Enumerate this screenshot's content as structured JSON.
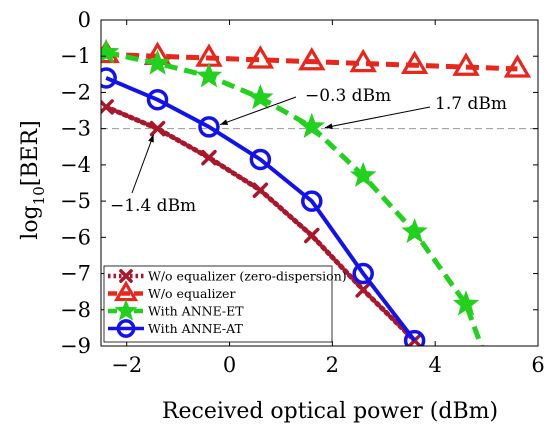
{
  "chart_data": {
    "type": "line",
    "xlabel": "Received optical power (dBm)",
    "ylabel_base": "log",
    "ylabel_sub": "10",
    "ylabel_arg": "[BER]",
    "xlim": [
      -2.5,
      6
    ],
    "ylim": [
      -9,
      0
    ],
    "xticks": [
      -2,
      0,
      2,
      4,
      6
    ],
    "yticks": [
      0,
      -1,
      -2,
      -3,
      -4,
      -5,
      -6,
      -7,
      -8,
      -9
    ],
    "grid": false,
    "legend_position": "bottom-left",
    "reference_line": {
      "y": -3,
      "style": "dashed",
      "color": "#9a9a9a"
    },
    "series": [
      {
        "name": "W/o equalizer (zero-dispersion)",
        "color": "#a8172b",
        "line_style": "dotted",
        "marker": "x",
        "x": [
          -2.4,
          -1.4,
          -0.4,
          0.6,
          1.6,
          2.6,
          3.6
        ],
        "y": [
          -2.4,
          -3.0,
          -3.8,
          -4.7,
          -5.95,
          -7.45,
          -8.85
        ]
      },
      {
        "name": "W/o equalizer",
        "color": "#e8261c",
        "line_style": "dashed",
        "marker": "triangle",
        "x": [
          -2.4,
          -1.4,
          -0.4,
          0.6,
          1.6,
          2.6,
          3.6,
          4.6,
          5.6
        ],
        "y": [
          -0.95,
          -1.0,
          -1.05,
          -1.1,
          -1.15,
          -1.2,
          -1.25,
          -1.3,
          -1.35
        ]
      },
      {
        "name": "With ANNE-ET",
        "color": "#22d11e",
        "line_style": "dashed",
        "marker": "star",
        "x": [
          -2.4,
          -1.4,
          -0.4,
          0.6,
          1.6,
          2.6,
          3.6,
          4.6
        ],
        "y": [
          -0.9,
          -1.2,
          -1.55,
          -2.15,
          -2.95,
          -4.3,
          -5.85,
          -7.85
        ]
      },
      {
        "name": "With ANNE-AT",
        "color": "#1212ee",
        "line_style": "solid",
        "marker": "circle",
        "x": [
          -2.4,
          -1.4,
          -0.4,
          0.6,
          1.6,
          2.6,
          3.6
        ],
        "y": [
          -1.6,
          -2.2,
          -2.95,
          -3.85,
          -5.0,
          -7.0,
          -8.85
        ]
      }
    ],
    "annotations": [
      {
        "text": "−0.3 dBm",
        "x": -0.3,
        "y": -3.0
      },
      {
        "text": "1.7 dBm",
        "x": 1.7,
        "y": -3.0
      },
      {
        "text": "−1.4 dBm",
        "x": -1.4,
        "y": -3.0
      }
    ]
  }
}
